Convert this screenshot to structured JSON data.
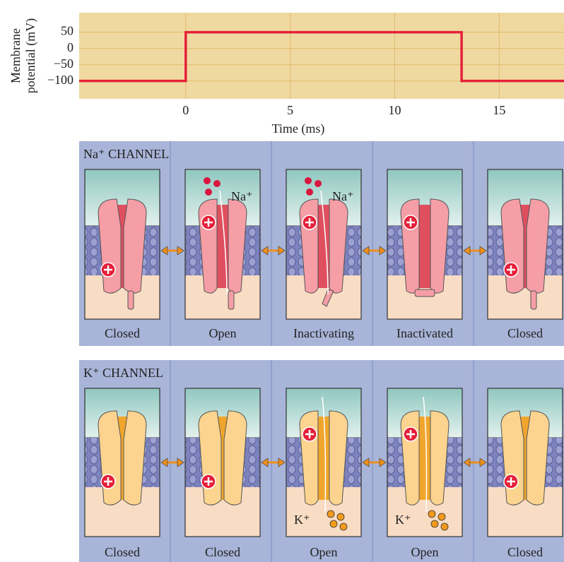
{
  "chart_data": {
    "type": "line",
    "ylabel": [
      "Membrane",
      "potential (mV)"
    ],
    "xlabel": "Time (ms)",
    "x": [
      -5.1,
      0,
      0,
      13.2,
      13.2,
      18.1
    ],
    "values": [
      -100,
      -100,
      50,
      50,
      -100,
      -100
    ],
    "color": "#e5203a",
    "xlim": [
      -5.1,
      18.1
    ],
    "xticks": [
      0,
      5,
      10,
      15
    ],
    "ylim": [
      -155,
      110
    ],
    "yticks": [
      50,
      0,
      {
        "value": -50,
        "label": "−50"
      },
      {
        "value": -100,
        "label": "−100"
      }
    ],
    "grid": true,
    "background": "#f0d9a0"
  },
  "channels": [
    {
      "title": "Na⁺ CHANNEL",
      "states": [
        {
          "label": "Closed"
        },
        {
          "label": "Open",
          "ion": "Na⁺"
        },
        {
          "label": "Inactivating",
          "ion": "Na⁺"
        },
        {
          "label": "Inactivated"
        },
        {
          "label": "Closed"
        }
      ]
    },
    {
      "title": "K⁺ CHANNEL",
      "states": [
        {
          "label": "Closed"
        },
        {
          "label": "Closed"
        },
        {
          "label": "Open",
          "ion": "K⁺"
        },
        {
          "label": "Open",
          "ion": "K⁺"
        },
        {
          "label": "Closed"
        }
      ]
    }
  ]
}
